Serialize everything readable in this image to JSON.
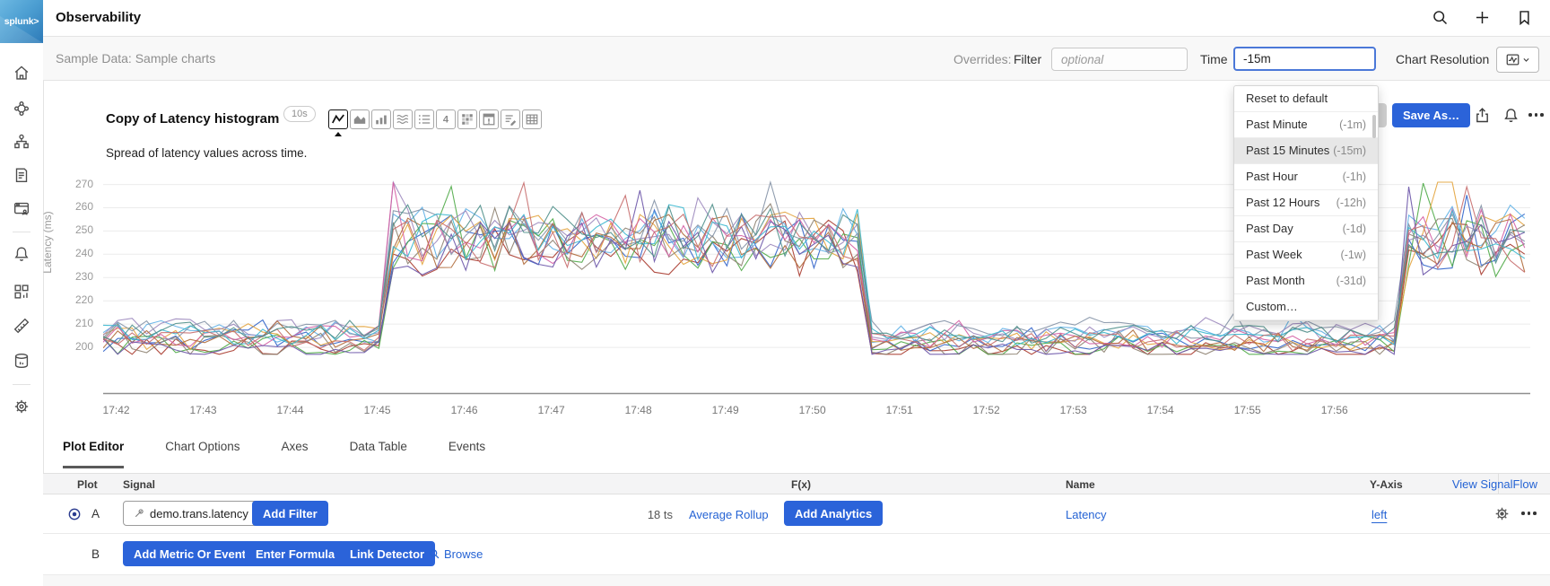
{
  "brand": {
    "logo_text": "splunk>",
    "product_title": "Observability"
  },
  "subheader": {
    "breadcrumb": "Sample Data: Sample charts",
    "overrides_label": "Overrides:",
    "filter_label": "Filter",
    "filter_placeholder": "optional",
    "time_label": "Time",
    "time_value": "-15m",
    "chart_resolution_label": "Chart Resolution"
  },
  "time_menu": {
    "selected_index": 2,
    "items": [
      {
        "label": "Reset to default",
        "code": ""
      },
      {
        "label": "Past Minute",
        "code": "(-1m)"
      },
      {
        "label": "Past 15 Minutes",
        "code": "(-15m)"
      },
      {
        "label": "Past Hour",
        "code": "(-1h)"
      },
      {
        "label": "Past 12 Hours",
        "code": "(-12h)"
      },
      {
        "label": "Past Day",
        "code": "(-1d)"
      },
      {
        "label": "Past Week",
        "code": "(-1w)"
      },
      {
        "label": "Past Month",
        "code": "(-31d)"
      },
      {
        "label": "Custom…",
        "code": ""
      }
    ]
  },
  "chart_header": {
    "title": "Copy of Latency histogram",
    "resolution_badge": "10s",
    "subtitle": "Spread of latency values across time.",
    "save_as_label": "Save As…",
    "single_value_glyph": "4",
    "chart_types": [
      "line",
      "area",
      "column",
      "histogram",
      "list",
      "single-value",
      "heatmap",
      "event-feed",
      "text",
      "table"
    ],
    "selected_type_index": 0
  },
  "chart_data": {
    "type": "line",
    "ylabel": "Latency (ms)",
    "yticks": [
      270,
      260,
      250,
      240,
      230,
      220,
      210,
      200
    ],
    "ylim": [
      197,
      276
    ],
    "xticklabels": [
      "17:42",
      "17:43",
      "17:44",
      "17:45",
      "17:46",
      "17:47",
      "17:48",
      "17:49",
      "17:50",
      "17:51",
      "17:52",
      "17:53",
      "17:54",
      "17:55",
      "17:56"
    ],
    "series_count_label": "18 ts",
    "t_min": -0.15,
    "t_max": 16.25,
    "step_min": 0.1667,
    "phases": [
      {
        "from": -0.15,
        "to": 3.02,
        "level": 204,
        "noise": 5
      },
      {
        "from": 3.02,
        "to": 8.55,
        "level": 247,
        "noise": 12
      },
      {
        "from": 8.55,
        "to": 14.8,
        "level": 203,
        "noise": 4
      },
      {
        "from": 14.8,
        "to": 16.25,
        "level": 246,
        "noise": 13
      }
    ],
    "series_colors": [
      "#a93a2e",
      "#2f62c9",
      "#5fb0e6",
      "#4faa47",
      "#e3a33c",
      "#9b87bd",
      "#8d8170",
      "#d45fa4",
      "#8492a6",
      "#b06a3a",
      "#38b7cf",
      "#6b55a8",
      "#c76b6b",
      "#4e8f8a"
    ]
  },
  "tabs": {
    "active_index": 0,
    "items": [
      {
        "label": "Plot Editor"
      },
      {
        "label": "Chart Options"
      },
      {
        "label": "Axes"
      },
      {
        "label": "Data Table"
      },
      {
        "label": "Events"
      }
    ]
  },
  "plot_table": {
    "headers": {
      "plot": "Plot",
      "signal": "Signal",
      "fx": "F(x)",
      "name": "Name",
      "y_axis": "Y-Axis"
    },
    "view_signalflow_label": "View SignalFlow",
    "row_a": {
      "plot": "A",
      "signal_value": "demo.trans.latency",
      "add_filter_label": "Add Filter",
      "ts_count": "18 ts",
      "rollup_label": "Average Rollup",
      "add_analytics_label": "Add Analytics",
      "name": "Latency",
      "y_axis": "left"
    },
    "row_b": {
      "plot": "B",
      "add_metric_label": "Add Metric Or Event",
      "enter_formula_label": "Enter Formula",
      "link_detector_label": "Link Detector",
      "browse_label": "Browse"
    }
  },
  "sidebar": {
    "items": [
      "home",
      "apm",
      "infrastructure",
      "log-observer",
      "rum",
      "alerts",
      "dashboards",
      "metrics",
      "data-management",
      "settings"
    ]
  },
  "colors": {
    "accent_blue": "#2b63d9",
    "link_blue": "#2563d4",
    "menu_highlight": "#e7e7e7"
  }
}
